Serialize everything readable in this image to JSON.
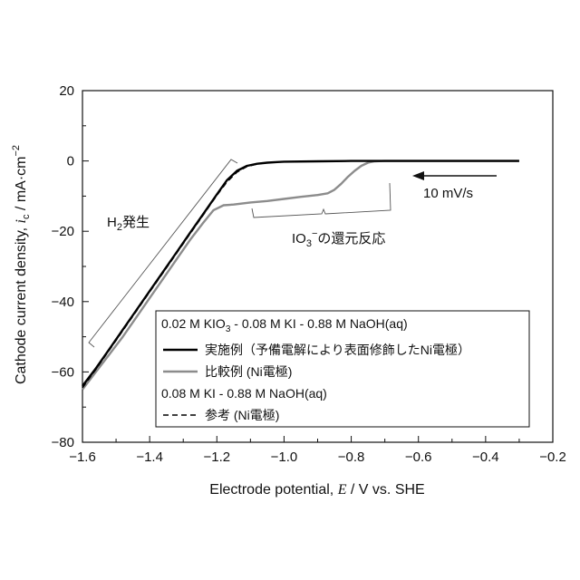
{
  "chart_data": {
    "type": "line",
    "xlabel": {
      "pre": "Electrode potential, ",
      "var": "E",
      "post": " / V vs. SHE"
    },
    "ylabel": {
      "pre": "Cathode current density, ",
      "var": "i",
      "sub": "c",
      "post": " / mA·cm",
      "sup": "−2"
    },
    "xlim": [
      -1.6,
      -0.2
    ],
    "ylim": [
      -80,
      20
    ],
    "xticks": [
      -1.6,
      -1.4,
      -1.2,
      -1.0,
      -0.8,
      -0.6,
      -0.4,
      -0.2
    ],
    "xtick_labels": [
      "−1.6",
      "−1.4",
      "−1.2",
      "−1.0",
      "−0.8",
      "−0.6",
      "−0.4",
      "−0.2"
    ],
    "yticks": [
      20,
      0,
      -20,
      -40,
      -60,
      -80
    ],
    "ytick_labels": [
      "20",
      "0",
      "−20",
      "−40",
      "−60",
      "−80"
    ],
    "grid": false,
    "series": [
      {
        "style": "solid-black",
        "color": "#000000",
        "points": [
          [
            -1.6,
            -64
          ],
          [
            -1.56,
            -59
          ],
          [
            -1.52,
            -53.5
          ],
          [
            -1.48,
            -48
          ],
          [
            -1.44,
            -42.5
          ],
          [
            -1.4,
            -37
          ],
          [
            -1.36,
            -31.5
          ],
          [
            -1.32,
            -26
          ],
          [
            -1.28,
            -20.5
          ],
          [
            -1.24,
            -15
          ],
          [
            -1.2,
            -9.5
          ],
          [
            -1.17,
            -5.5
          ],
          [
            -1.14,
            -2.8
          ],
          [
            -1.11,
            -1.4
          ],
          [
            -1.08,
            -0.8
          ],
          [
            -1.05,
            -0.5
          ],
          [
            -1.02,
            -0.3
          ],
          [
            -1.0,
            -0.2
          ],
          [
            -0.9,
            -0.1
          ],
          [
            -0.8,
            0
          ],
          [
            -0.3,
            0
          ]
        ]
      },
      {
        "style": "solid-gray",
        "color": "#8c8c8c",
        "points": [
          [
            -1.6,
            -65
          ],
          [
            -1.56,
            -60
          ],
          [
            -1.52,
            -55
          ],
          [
            -1.48,
            -50
          ],
          [
            -1.44,
            -44.5
          ],
          [
            -1.4,
            -39
          ],
          [
            -1.36,
            -33.5
          ],
          [
            -1.32,
            -28
          ],
          [
            -1.28,
            -22.5
          ],
          [
            -1.24,
            -17.5
          ],
          [
            -1.21,
            -14
          ],
          [
            -1.18,
            -12.6
          ],
          [
            -1.15,
            -12.4
          ],
          [
            -1.1,
            -11.8
          ],
          [
            -1.05,
            -11.4
          ],
          [
            -1.0,
            -10.8
          ],
          [
            -0.95,
            -10.2
          ],
          [
            -0.9,
            -9.7
          ],
          [
            -0.87,
            -9.2
          ],
          [
            -0.85,
            -8.2
          ],
          [
            -0.83,
            -6.5
          ],
          [
            -0.81,
            -4.5
          ],
          [
            -0.79,
            -2.8
          ],
          [
            -0.77,
            -1.4
          ],
          [
            -0.75,
            -0.5
          ],
          [
            -0.73,
            -0.1
          ],
          [
            -0.7,
            0
          ],
          [
            -0.3,
            0
          ]
        ]
      },
      {
        "style": "dashed-black",
        "color": "#000000",
        "points": [
          [
            -1.6,
            -64.5
          ],
          [
            -1.56,
            -59.3
          ],
          [
            -1.52,
            -53.8
          ],
          [
            -1.48,
            -48.3
          ],
          [
            -1.44,
            -42.8
          ],
          [
            -1.4,
            -37.3
          ],
          [
            -1.36,
            -31.8
          ],
          [
            -1.32,
            -26.3
          ],
          [
            -1.28,
            -20.8
          ],
          [
            -1.24,
            -15.3
          ],
          [
            -1.2,
            -9.8
          ],
          [
            -1.17,
            -6
          ],
          [
            -1.14,
            -3.2
          ],
          [
            -1.11,
            -1.6
          ],
          [
            -1.08,
            -0.9
          ],
          [
            -1.05,
            -0.5
          ],
          [
            -1.0,
            -0.2
          ],
          [
            -0.9,
            -0.1
          ],
          [
            -0.8,
            0
          ],
          [
            -0.3,
            0
          ]
        ]
      }
    ],
    "legend": {
      "heading1": "0.02 M KIO",
      "heading1_sub": "3",
      "heading1_rest": " - 0.08 M KI - 0.88 M NaOH(aq)",
      "entry1": "実施例（予備電解により表面修飾したNi電極）",
      "entry2": "比較例 (Ni電極)",
      "heading2": "0.08 M KI - 0.88 M NaOH(aq)",
      "entry3": "参考 (Ni電極)"
    },
    "annotations": {
      "h2_pre": "H",
      "h2_sub": "2",
      "h2_post": "発生",
      "io3_pre": "IO",
      "io3_sub": "3",
      "io3_sup": "−",
      "io3_post": "の還元反応",
      "scan_rate": "10 mV/s"
    }
  }
}
